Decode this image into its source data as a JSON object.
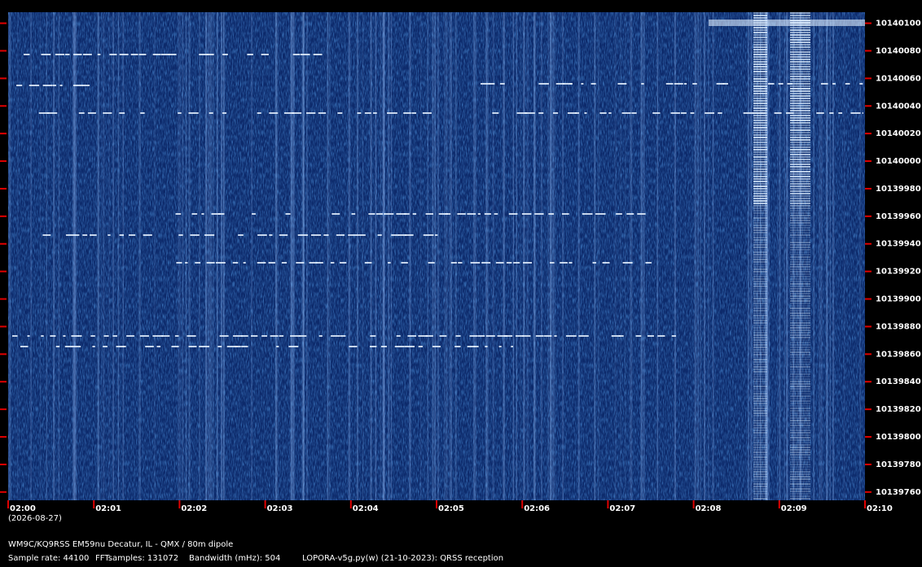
{
  "chart_data": {
    "type": "spectrogram",
    "date": "(2026-08-27)",
    "station": "WM9C/KQ9RSS EM59nu Decatur, IL - QMX / 80m dipole",
    "sample_rate": "Sample rate: 44100",
    "fft_samples": "FFTsamples: 131072",
    "bandwidth": "Bandwidth (mHz): 504",
    "software": "LOPORA-v5g.py(w) (21-10-2023): QRSS reception",
    "categories": [
      "02:00",
      "02:01",
      "02:02",
      "02:03",
      "02:04",
      "02:05",
      "02:06",
      "02:07",
      "02:08",
      "02:09",
      "02:10"
    ],
    "ylim": [
      10139754,
      10140108
    ],
    "yticks": [
      10139760,
      10139780,
      10139800,
      10139820,
      10139840,
      10139860,
      10139880,
      10139900,
      10139920,
      10139940,
      10139960,
      10139980,
      10140000,
      10140020,
      10140040,
      10140060,
      10140080,
      10140100
    ],
    "grid": false
  }
}
